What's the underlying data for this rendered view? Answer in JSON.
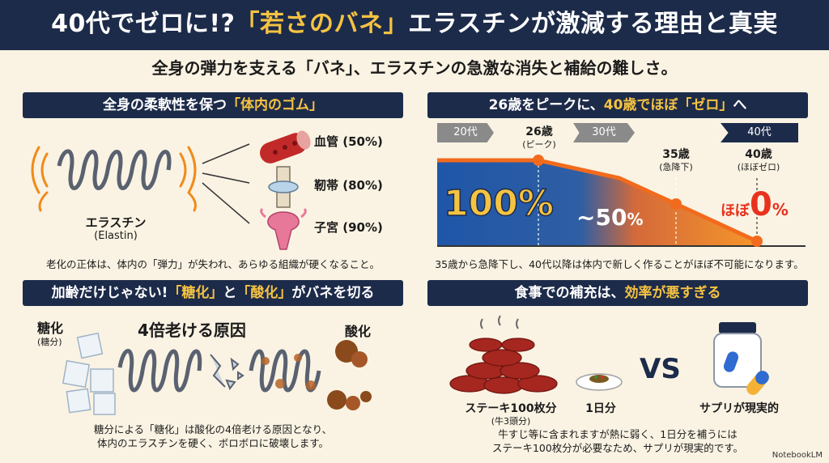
{
  "title": {
    "part1": "40代でゼロに!?",
    "highlight": "「若さのバネ」",
    "part2": "エラスチンが激減する理由と真実"
  },
  "subtitle": "全身の弾力を支える「バネ」、エラスチンの急激な消失と補給の難しさ。",
  "sections": {
    "rubber": {
      "heading_prefix": "全身の柔軟性を保つ",
      "heading_highlight": "「体内のゴム」",
      "spring_label": "エラスチン",
      "spring_sub": "(Elastin)",
      "organs": [
        {
          "label": "血管 (50%)",
          "icon": "blood-vessel-icon"
        },
        {
          "label": "靭帯 (80%)",
          "icon": "knee-joint-icon"
        },
        {
          "label": "子宮 (90%)",
          "icon": "uterus-icon"
        }
      ],
      "caption": "老化の正体は、体内の「弾力」が失われ、あらゆる組織が硬くなること。"
    },
    "decline": {
      "heading_prefix": "26歳をピークに、",
      "heading_highlight": "40歳でほぼ「ゼロ」",
      "heading_suffix": "へ",
      "tags": [
        "20代",
        "30代",
        "40代"
      ],
      "points": {
        "peak": {
          "age": "26歳",
          "note": "(ピーク)"
        },
        "drop": {
          "age": "35歳",
          "note": "(急降下)"
        },
        "zero": {
          "age": "40歳",
          "note": "(ほぼゼロ)"
        }
      },
      "labels": {
        "p100": "100%",
        "p50_prefix": "~50",
        "p50_unit": "%",
        "p0_prefix": "ほぼ",
        "p0_num": "0",
        "p0_unit": "%"
      },
      "caption": "35歳から急降下し、40代以降は体内で新しく作ることがほぼ不可能になります。"
    },
    "glycation": {
      "heading_prefix": "加齢だけじゃない!",
      "heading_hl1": "「糖化」",
      "heading_mid": "と",
      "heading_hl2": "「酸化」",
      "heading_suffix": "がバネを切る",
      "sugar_label": "糖化",
      "sugar_sub": "(糖分)",
      "center_label": "4倍老ける原因",
      "oxidation_label": "酸化",
      "caption_line1": "糖分による「糖化」は酸化の4倍老ける原因となり、",
      "caption_line2": "体内のエラスチンを硬く、ボロボロに破壊します。"
    },
    "food": {
      "heading_prefix": "食事での補充は、",
      "heading_highlight": "効率が悪すぎる",
      "steak_label": "ステーキ100枚分",
      "steak_sub": "(牛3頭分)",
      "daily_label": "1日分",
      "vs": "VS",
      "supplement_label": "サプリが現実的",
      "caption_line1": "牛すじ等に含まれますが熱に弱く、1日分を補うには",
      "caption_line2": "ステーキ100枚分が必要なため、サプリが現実的です。"
    }
  },
  "brand": "NotebookLM",
  "colors": {
    "navy": "#1d2b4a",
    "gold": "#f5c342",
    "orange": "#f26b1d",
    "blue": "#1f56a8"
  }
}
